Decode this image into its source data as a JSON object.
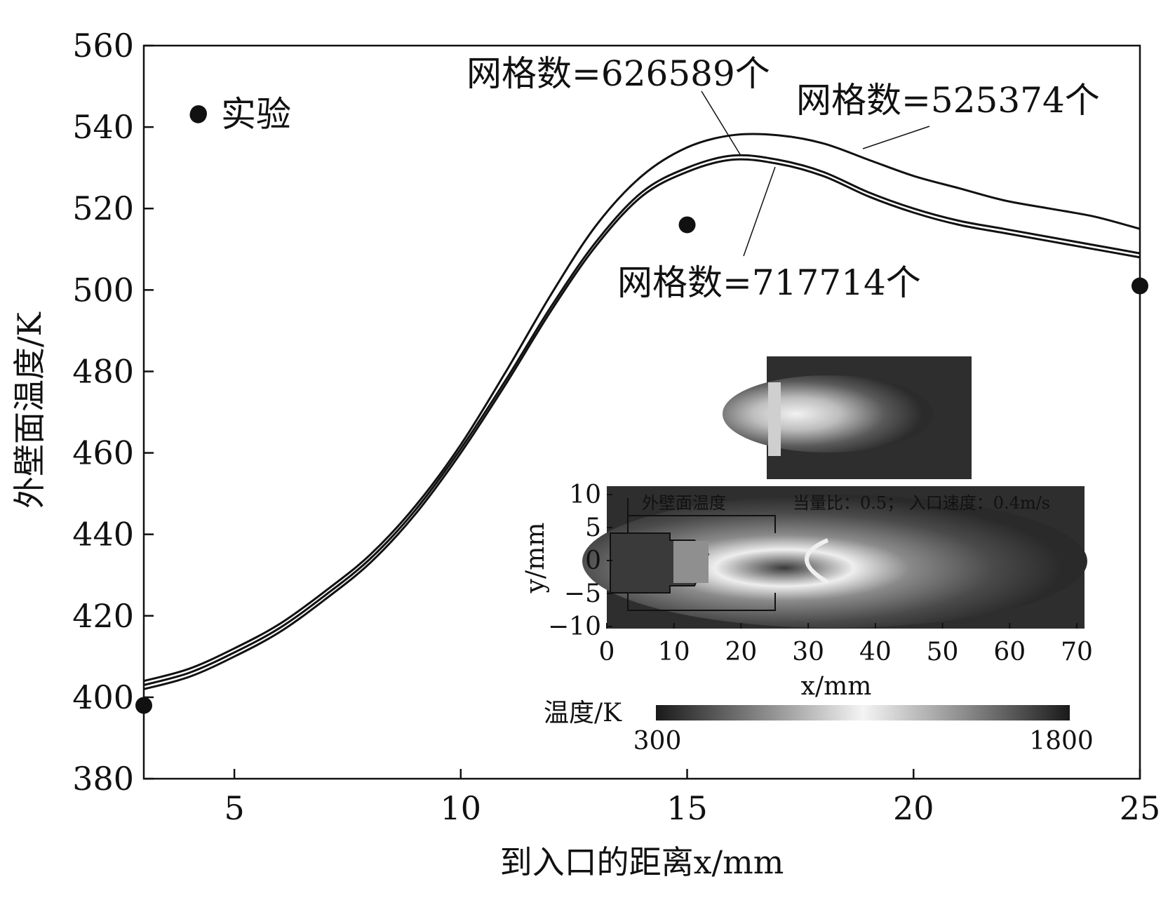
{
  "chart_data": {
    "type": "line",
    "xlabel": "到入口的距离x/mm",
    "ylabel": "外壁面温度/K",
    "xlim": [
      3,
      25
    ],
    "ylim": [
      380,
      560
    ],
    "xticks": [
      5,
      10,
      15,
      20,
      25
    ],
    "yticks": [
      380,
      400,
      420,
      440,
      460,
      480,
      500,
      520,
      540,
      560
    ],
    "series": [
      {
        "name": "网格数=525374个",
        "x": [
          3,
          4,
          5,
          6,
          7,
          8,
          9,
          10,
          11,
          12,
          13,
          14,
          15,
          16,
          17,
          18,
          19,
          20,
          21,
          22,
          23,
          24,
          25
        ],
        "y": [
          404,
          407,
          412,
          418,
          426,
          435,
          447,
          462,
          480,
          499,
          516,
          528,
          535,
          538,
          538,
          536,
          532,
          528,
          525,
          522,
          520,
          518,
          515
        ]
      },
      {
        "name": "网格数=626589个",
        "x": [
          3,
          4,
          5,
          6,
          7,
          8,
          9,
          10,
          11,
          12,
          13,
          14,
          15,
          16,
          17,
          18,
          19,
          20,
          21,
          22,
          23,
          24,
          25
        ],
        "y": [
          403,
          406,
          411,
          417,
          425,
          434,
          446,
          461,
          478,
          496,
          512,
          524,
          530,
          533,
          532,
          529,
          524,
          520,
          517,
          515,
          513,
          511,
          509
        ]
      },
      {
        "name": "网格数=717714个",
        "x": [
          3,
          4,
          5,
          6,
          7,
          8,
          9,
          10,
          11,
          12,
          13,
          14,
          15,
          16,
          17,
          18,
          19,
          20,
          21,
          22,
          23,
          24,
          25
        ],
        "y": [
          402,
          405,
          410,
          416,
          424,
          433,
          445,
          460,
          477,
          495,
          511,
          523,
          529,
          532,
          531,
          528,
          523,
          519,
          516,
          514,
          512,
          510,
          508
        ]
      },
      {
        "name": "实验",
        "style": "markers",
        "x": [
          3,
          4.2,
          15,
          25
        ],
        "y": [
          398,
          543,
          516,
          501
        ]
      }
    ],
    "legend": {
      "marker_label": "实验"
    },
    "inset": {
      "xlabel": "x/mm",
      "ylabel": "y/mm",
      "xticks": [
        "0",
        "10",
        "20",
        "30",
        "40",
        "50",
        "60",
        "70"
      ],
      "yticks": [
        "10",
        "5",
        "0",
        "−5",
        "−10"
      ],
      "annotation_wall": "外壁面温度",
      "annotation_params": "当量比：0.5；  入口速度：0.4m/s",
      "colorbar_label": "温度/K",
      "colorbar_min": "300",
      "colorbar_max": "1800"
    }
  }
}
